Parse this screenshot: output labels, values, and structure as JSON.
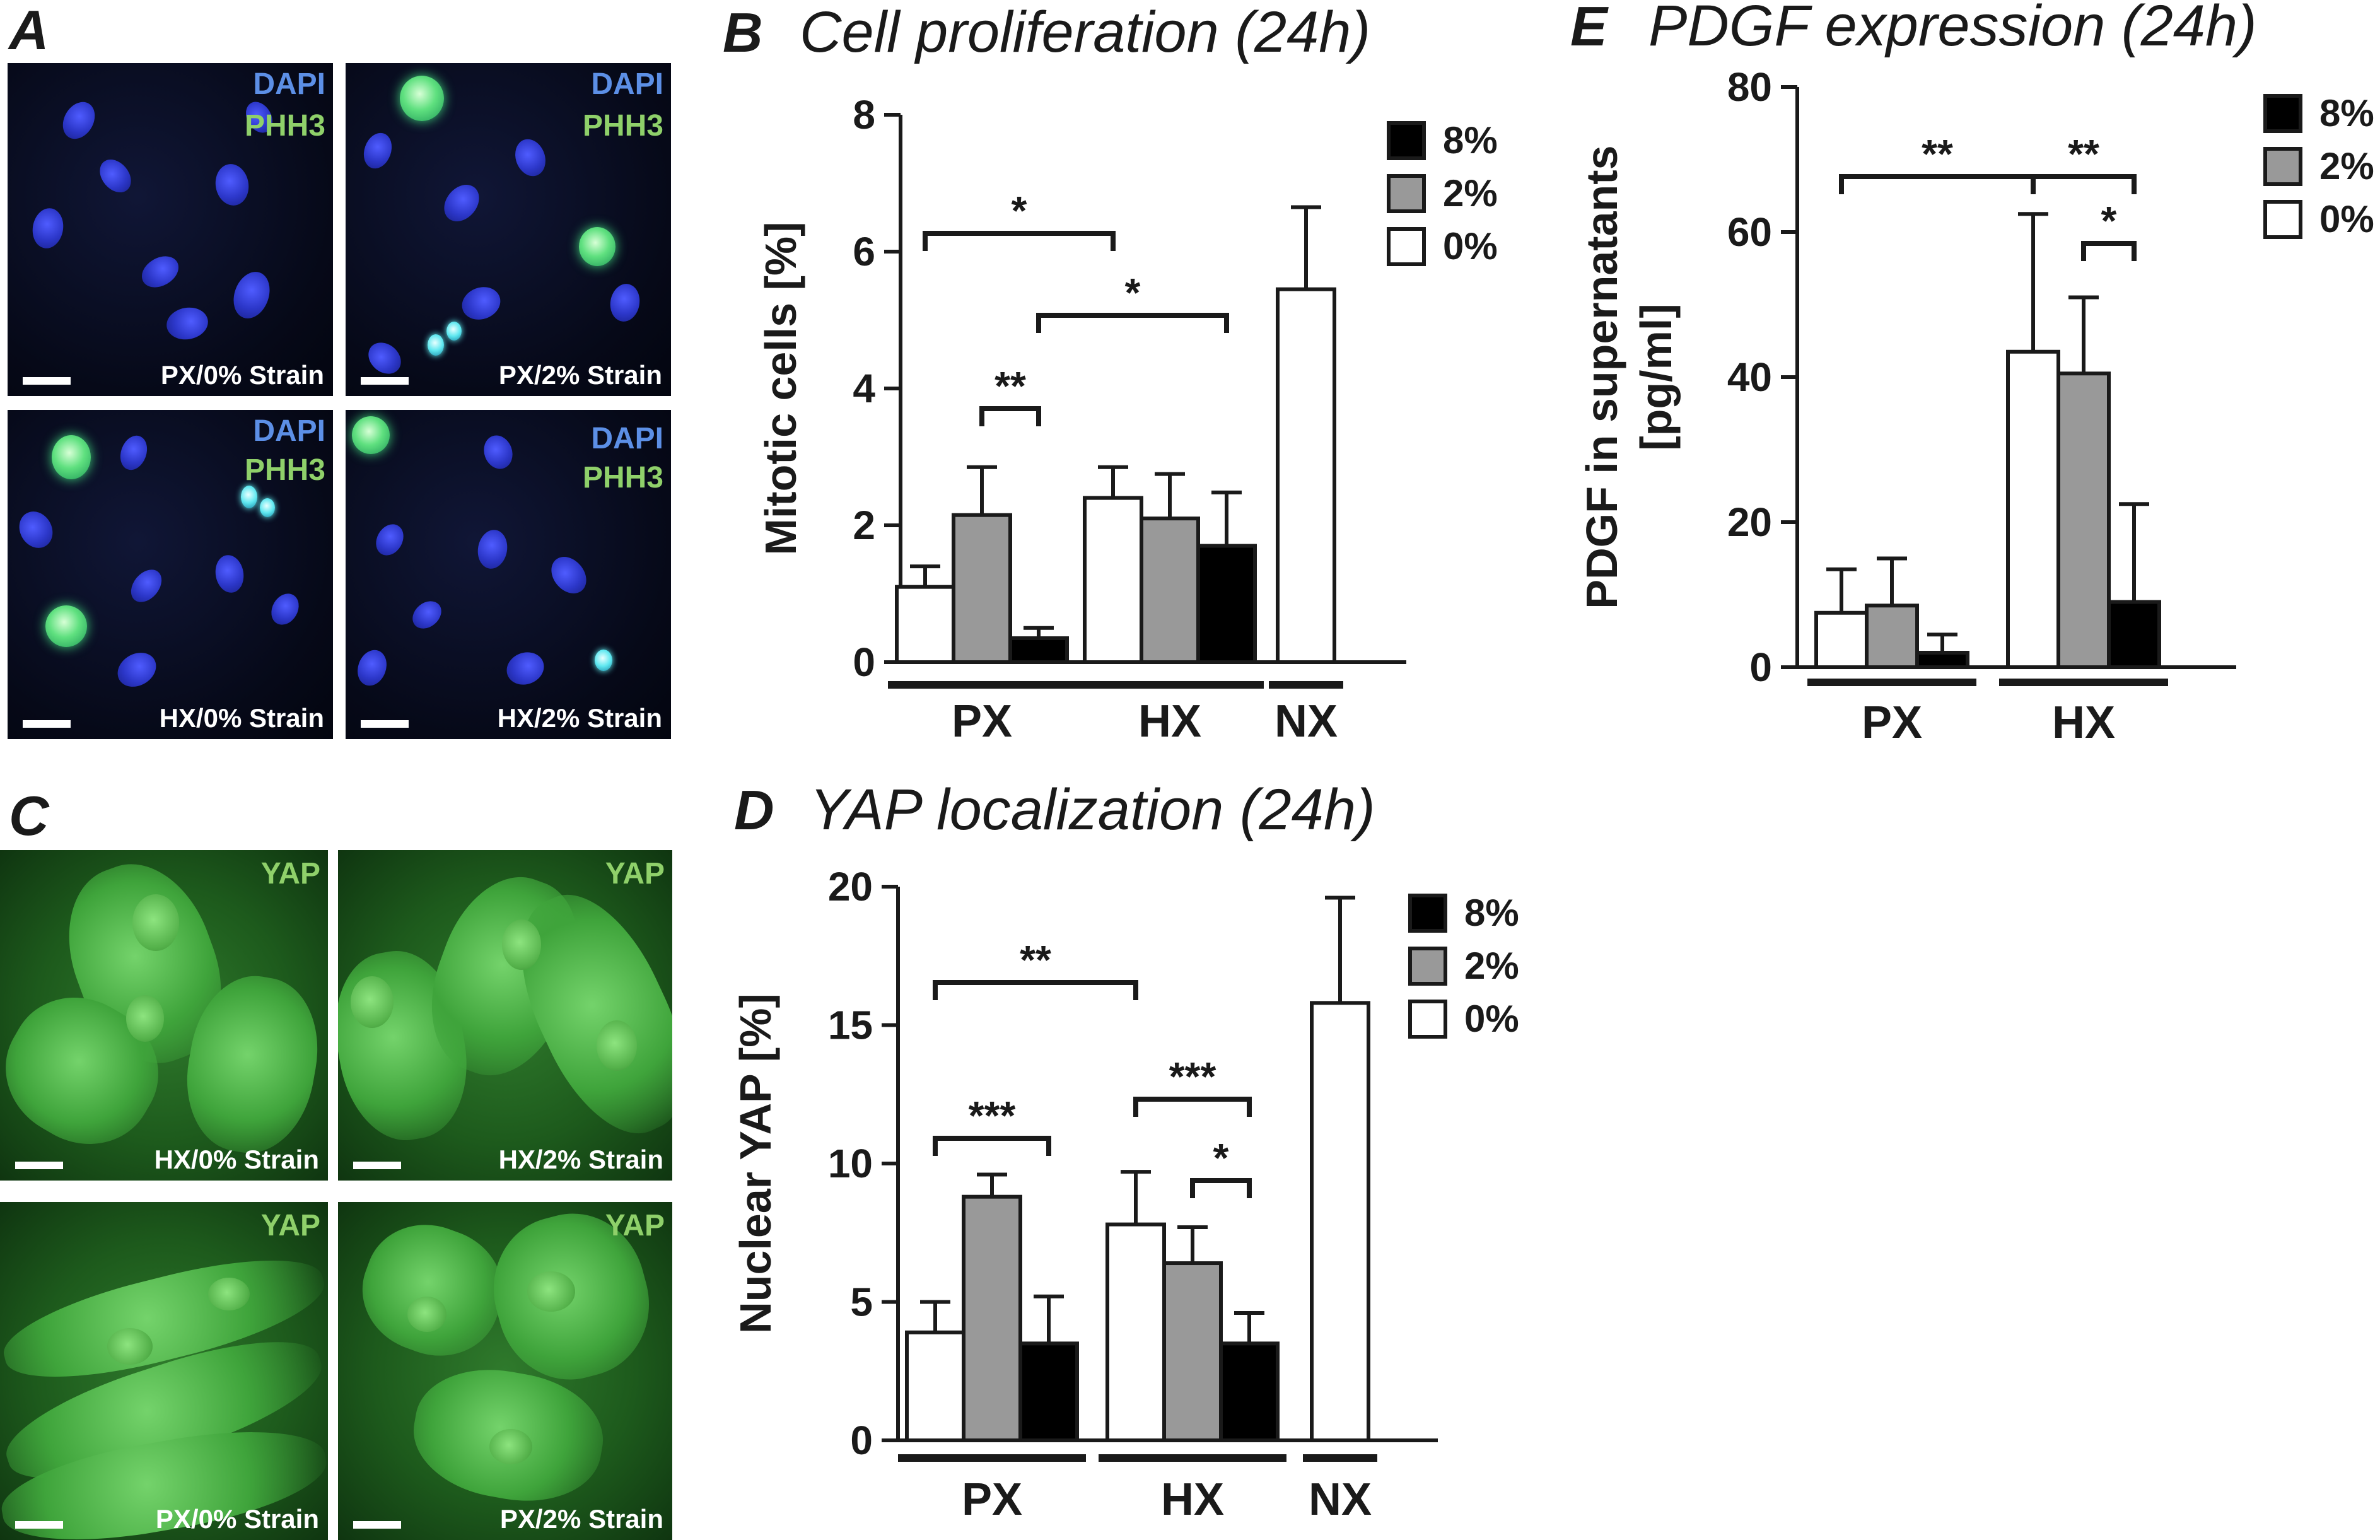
{
  "panels": {
    "A": {
      "letter": "A",
      "images": [
        {
          "stains": [
            "DAPI",
            "PHH3"
          ],
          "condition": "PX/0% Strain"
        },
        {
          "stains": [
            "DAPI",
            "PHH3"
          ],
          "condition": "PX/2% Strain"
        },
        {
          "stains": [
            "DAPI",
            "PHH3"
          ],
          "condition": "HX/0% Strain"
        },
        {
          "stains": [
            "DAPI",
            "PHH3"
          ],
          "condition": "HX/2% Strain"
        }
      ]
    },
    "C": {
      "letter": "C",
      "images": [
        {
          "stain": "YAP",
          "condition": "HX/0% Strain"
        },
        {
          "stain": "YAP",
          "condition": "HX/2% Strain"
        },
        {
          "stain": "YAP",
          "condition": "PX/0% Strain"
        },
        {
          "stain": "YAP",
          "condition": "PX/2% Strain"
        }
      ]
    }
  },
  "colors": {
    "bar_0": "#ffffff",
    "bar_2": "#999999",
    "bar_8": "#000000",
    "dapi_label": "#5c8fe6",
    "phh3_label": "#8fd06a"
  },
  "chart_data": [
    {
      "panel": "B",
      "type": "bar",
      "title": "Cell proliferation (24h)",
      "ylabel": "Mitotic cells [%]",
      "xlabel": "",
      "ylim": [
        0,
        8
      ],
      "yticks": [
        0,
        2,
        4,
        6,
        8
      ],
      "legend": {
        "entries": [
          "8%",
          "2%",
          "0%"
        ],
        "placement": "top-right"
      },
      "groups": [
        {
          "label": "PX",
          "bars": [
            {
              "series": "0%",
              "value": 1.1,
              "err": 0.3
            },
            {
              "series": "2%",
              "value": 2.15,
              "err": 0.7
            },
            {
              "series": "8%",
              "value": 0.35,
              "err": 0.15
            }
          ]
        },
        {
          "label": "HX",
          "bars": [
            {
              "series": "0%",
              "value": 2.4,
              "err": 0.45
            },
            {
              "series": "2%",
              "value": 2.1,
              "err": 0.65
            },
            {
              "series": "8%",
              "value": 1.7,
              "err": 0.78
            }
          ]
        },
        {
          "label": "NX",
          "bars": [
            {
              "series": "0%",
              "value": 5.45,
              "err": 1.2
            }
          ]
        }
      ],
      "significance": [
        {
          "label": "*",
          "from": [
            0,
            0
          ],
          "to": [
            1,
            0
          ]
        },
        {
          "label": "*",
          "from": [
            0,
            2
          ],
          "to": [
            1,
            2
          ]
        },
        {
          "label": "**",
          "from": [
            0,
            1
          ],
          "to": [
            0,
            2
          ]
        }
      ]
    },
    {
      "panel": "D",
      "type": "bar",
      "title": "YAP localization (24h)",
      "ylabel": "Nuclear YAP [%]",
      "xlabel": "",
      "ylim": [
        0,
        20
      ],
      "yticks": [
        0,
        5,
        10,
        15,
        20
      ],
      "legend": {
        "entries": [
          "8%",
          "2%",
          "0%"
        ],
        "placement": "top-right"
      },
      "groups": [
        {
          "label": "PX",
          "bars": [
            {
              "series": "0%",
              "value": 3.9,
              "err": 1.1
            },
            {
              "series": "2%",
              "value": 8.8,
              "err": 0.8
            },
            {
              "series": "8%",
              "value": 3.5,
              "err": 1.7
            }
          ]
        },
        {
          "label": "HX",
          "bars": [
            {
              "series": "0%",
              "value": 7.8,
              "err": 1.9
            },
            {
              "series": "2%",
              "value": 6.4,
              "err": 1.3
            },
            {
              "series": "8%",
              "value": 3.5,
              "err": 1.1
            }
          ]
        },
        {
          "label": "NX",
          "bars": [
            {
              "series": "0%",
              "value": 15.8,
              "err": 3.8
            }
          ]
        }
      ],
      "significance": [
        {
          "label": "**",
          "from": [
            0,
            0
          ],
          "to": [
            1,
            0
          ]
        },
        {
          "label": "***",
          "from": [
            0,
            0
          ],
          "to": [
            0,
            2
          ]
        },
        {
          "label": "***",
          "from": [
            1,
            0
          ],
          "to": [
            1,
            2
          ]
        },
        {
          "label": "*",
          "from": [
            1,
            1
          ],
          "to": [
            1,
            2
          ]
        }
      ]
    },
    {
      "panel": "E",
      "type": "bar",
      "title": "PDGF expression (24h)",
      "ylabel": "PDGF in supernatants [pg/ml]",
      "xlabel": "",
      "ylim": [
        0,
        80
      ],
      "yticks": [
        0,
        20,
        40,
        60,
        80
      ],
      "legend": {
        "entries": [
          "8%",
          "2%",
          "0%"
        ],
        "placement": "top-right"
      },
      "groups": [
        {
          "label": "PX",
          "bars": [
            {
              "series": "0%",
              "value": 7.5,
              "err": 6.0
            },
            {
              "series": "2%",
              "value": 8.5,
              "err": 6.5
            },
            {
              "series": "8%",
              "value": 2.0,
              "err": 2.5
            }
          ]
        },
        {
          "label": "HX",
          "bars": [
            {
              "series": "0%",
              "value": 43.5,
              "err": 19.0
            },
            {
              "series": "2%",
              "value": 40.5,
              "err": 10.5
            },
            {
              "series": "8%",
              "value": 9.0,
              "err": 13.5
            }
          ]
        }
      ],
      "significance": [
        {
          "label": "**",
          "from": [
            0,
            0
          ],
          "to": [
            1,
            0
          ]
        },
        {
          "label": "**",
          "from": [
            1,
            0
          ],
          "to": [
            1,
            2
          ]
        },
        {
          "label": "*",
          "from": [
            1,
            1
          ],
          "to": [
            1,
            2
          ]
        }
      ]
    }
  ]
}
